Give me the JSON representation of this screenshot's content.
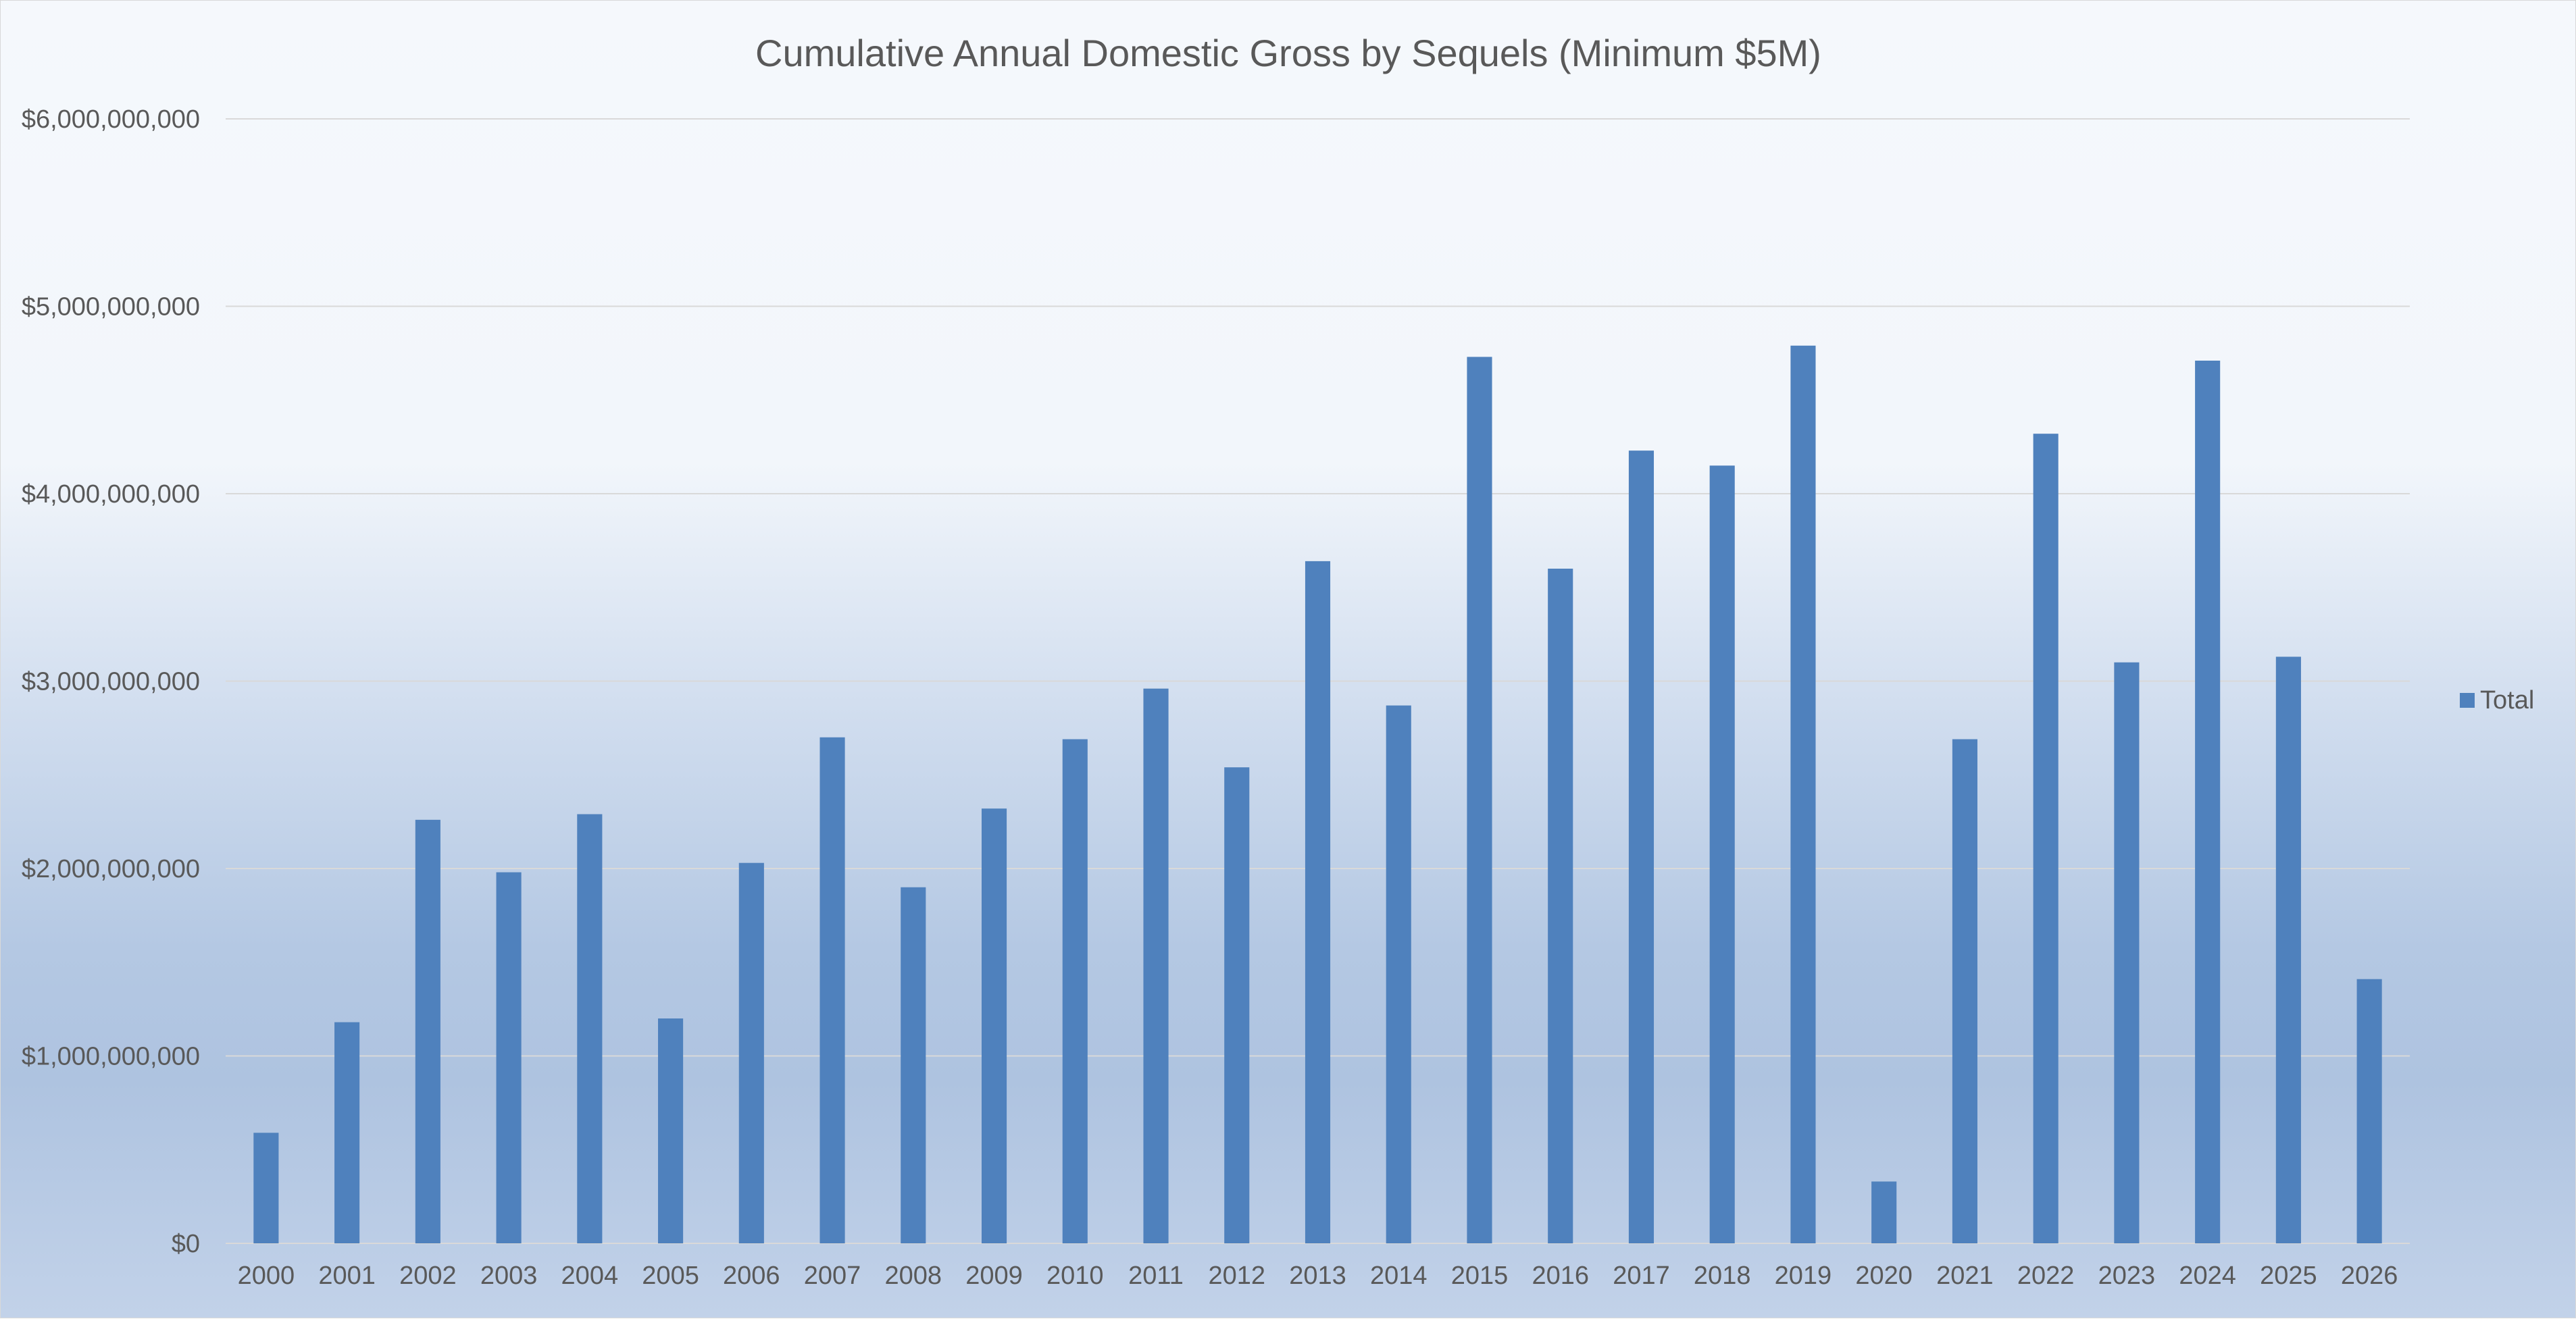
{
  "chart_data": {
    "type": "bar",
    "title": "Cumulative Annual Domestic Gross by Sequels (Minimum $5M)",
    "xlabel": "",
    "ylabel": "",
    "ylim": [
      0,
      6000000000
    ],
    "y_ticks": [
      0,
      1000000000,
      2000000000,
      3000000000,
      4000000000,
      5000000000,
      6000000000
    ],
    "y_tick_labels": [
      "$0",
      "$1,000,000,000",
      "$2,000,000,000",
      "$3,000,000,000",
      "$4,000,000,000",
      "$5,000,000,000",
      "$6,000,000,000"
    ],
    "grid": true,
    "legend_position": "right",
    "categories": [
      "2000",
      "2001",
      "2002",
      "2003",
      "2004",
      "2005",
      "2006",
      "2007",
      "2008",
      "2009",
      "2010",
      "2011",
      "2012",
      "2013",
      "2014",
      "2015",
      "2016",
      "2017",
      "2018",
      "2019",
      "2020",
      "2021",
      "2022",
      "2023",
      "2024",
      "2025",
      "2026"
    ],
    "series": [
      {
        "name": "Total",
        "color": "#4f81bd",
        "values": [
          590000000,
          1180000000,
          2260000000,
          1980000000,
          2290000000,
          1200000000,
          2030000000,
          2700000000,
          1900000000,
          2320000000,
          2690000000,
          2960000000,
          2540000000,
          3640000000,
          2870000000,
          4730000000,
          3600000000,
          4230000000,
          4150000000,
          4790000000,
          330000000,
          2690000000,
          4320000000,
          3100000000,
          4710000000,
          3130000000,
          1410000000
        ]
      }
    ],
    "gridline_color": "#d9d9d9"
  }
}
